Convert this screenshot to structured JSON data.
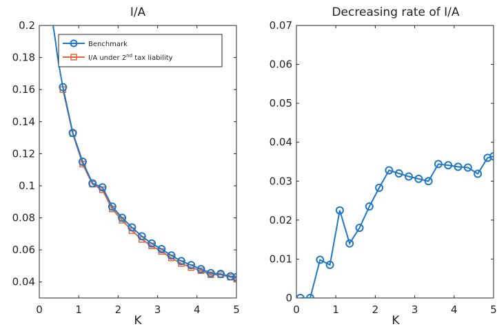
{
  "chart_data": [
    {
      "type": "line",
      "title": "I/A",
      "xlabel": "K",
      "ylabel": "",
      "xlim": [
        0,
        5
      ],
      "ylim": [
        0.03,
        0.2
      ],
      "xticks": [
        "0",
        "1",
        "2",
        "3",
        "4",
        "5"
      ],
      "yticks": [
        "0.04",
        "0.06",
        "0.08",
        "0.1",
        "0.12",
        "0.14",
        "0.16",
        "0.18",
        "0.2"
      ],
      "grid": false,
      "legend_position": "top-right",
      "series": [
        {
          "name": "Benchmark",
          "marker": "circle",
          "color": "#1f77c4",
          "curve_x": [
            0.35,
            0.4,
            0.45,
            0.5,
            0.55,
            0.6
          ],
          "curve_y": [
            0.2,
            0.192,
            0.183,
            0.175,
            0.168,
            0.161
          ],
          "x": [
            0.6,
            0.85,
            1.1,
            1.35,
            1.6,
            1.85,
            2.1,
            2.35,
            2.6,
            2.85,
            3.1,
            3.35,
            3.6,
            3.85,
            4.1,
            4.35,
            4.6,
            4.85,
            5.0
          ],
          "y": [
            0.1615,
            0.133,
            0.115,
            0.1015,
            0.099,
            0.087,
            0.08,
            0.074,
            0.0685,
            0.064,
            0.0605,
            0.0565,
            0.053,
            0.0505,
            0.048,
            0.0455,
            0.045,
            0.0435,
            0.043
          ]
        },
        {
          "name": "I/A under 2nd tax liability",
          "name_main": "I/A under 2",
          "name_sup": "nd",
          "name_rest": " tax liability",
          "marker": "square",
          "color": "#e0653a",
          "x": [
            0.6,
            0.85,
            1.1,
            1.35,
            1.6,
            1.85,
            2.1,
            2.35,
            2.6,
            2.85,
            3.1,
            3.35,
            3.6,
            3.85,
            4.1,
            4.35,
            4.6,
            4.85,
            5.0
          ],
          "y": [
            0.16,
            0.1325,
            0.1135,
            0.101,
            0.0975,
            0.0855,
            0.0785,
            0.072,
            0.0665,
            0.0625,
            0.059,
            0.055,
            0.0515,
            0.049,
            0.047,
            0.0445,
            0.0445,
            0.043,
            0.042
          ]
        }
      ]
    },
    {
      "type": "line",
      "title": "Decreasing rate of I/A",
      "xlabel": "K",
      "ylabel": "",
      "xlim": [
        0,
        5
      ],
      "ylim": [
        0,
        0.07
      ],
      "xticks": [
        "0",
        "1",
        "2",
        "3",
        "4",
        "5"
      ],
      "yticks": [
        "0",
        "0.01",
        "0.02",
        "0.03",
        "0.04",
        "0.05",
        "0.06",
        "0.07"
      ],
      "grid": false,
      "series": [
        {
          "marker": "circle",
          "color": "#1f77c4",
          "x": [
            0.1,
            0.35,
            0.6,
            0.85,
            1.1,
            1.35,
            1.6,
            1.85,
            2.1,
            2.35,
            2.6,
            2.85,
            3.1,
            3.35,
            3.6,
            3.85,
            4.1,
            4.35,
            4.6,
            4.85,
            5.0
          ],
          "y": [
            0.0,
            0.0,
            0.0098,
            0.0085,
            0.0225,
            0.014,
            0.018,
            0.0235,
            0.0283,
            0.0328,
            0.032,
            0.0312,
            0.0306,
            0.03,
            0.0344,
            0.0341,
            0.0337,
            0.0335,
            0.0319,
            0.036,
            0.0364
          ]
        }
      ]
    }
  ]
}
